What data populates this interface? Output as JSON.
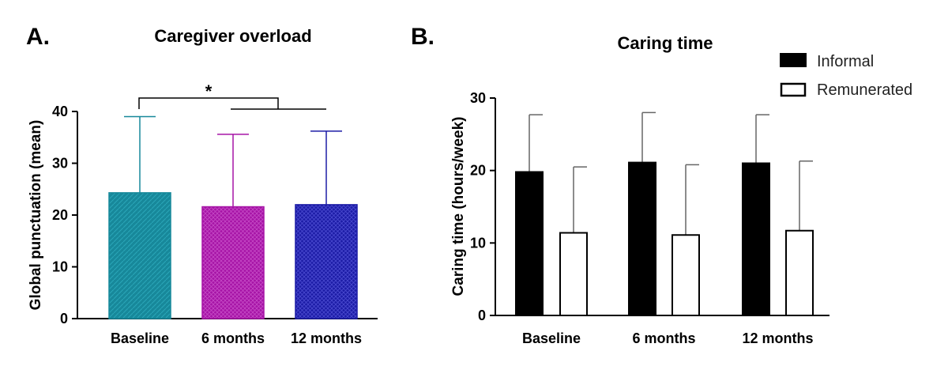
{
  "chart_data": [
    {
      "panel_label": "A.",
      "type": "bar",
      "title": "Caregiver overload",
      "xlabel": "",
      "ylabel": "Global punctuation (mean)",
      "ylim": [
        0,
        40
      ],
      "yticks": [
        "0",
        "10",
        "20",
        "30",
        "40"
      ],
      "categories": [
        "Baseline",
        "6 months",
        "12 months"
      ],
      "values": [
        24.3,
        21.6,
        22.0
      ],
      "error_upper": [
        39.0,
        35.6,
        36.2
      ],
      "colors": [
        "#17889a",
        "#a614a6",
        "#1c1ca6"
      ],
      "significance": {
        "label": "*",
        "between": [
          "Baseline",
          "6 months – 12 months"
        ]
      }
    },
    {
      "panel_label": "B.",
      "type": "bar",
      "title": "Caring time",
      "xlabel": "",
      "ylabel": "Caring time (hours/week)",
      "ylim": [
        0,
        30
      ],
      "yticks": [
        "0",
        "10",
        "20",
        "30"
      ],
      "categories": [
        "Baseline",
        "6 months",
        "12 months"
      ],
      "series": [
        {
          "name": "Informal",
          "values": [
            19.8,
            21.1,
            21.0
          ],
          "error_upper": [
            27.7,
            28.0,
            27.7
          ],
          "color": "#000000"
        },
        {
          "name": "Remunerated",
          "values": [
            11.4,
            11.1,
            11.7
          ],
          "error_upper": [
            20.5,
            20.8,
            21.3
          ],
          "color": "#ffffff"
        }
      ],
      "legend_position": "top-right"
    }
  ]
}
